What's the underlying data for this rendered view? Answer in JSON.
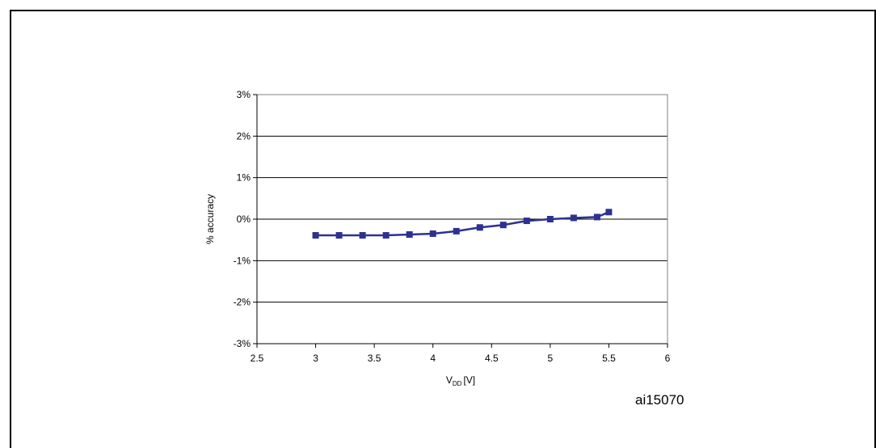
{
  "figure_id": "ai15070",
  "chart_data": {
    "type": "line",
    "title": "",
    "xlabel": {
      "main": "V",
      "sub": "DD",
      "unit": "[V]"
    },
    "ylabel": "% accuracy",
    "xlim": [
      2.5,
      6
    ],
    "ylim": [
      -3,
      3
    ],
    "x_ticks": [
      "2.5",
      "3",
      "3.5",
      "4",
      "4.5",
      "5",
      "5.5",
      "6"
    ],
    "y_ticks": [
      "3%",
      "2%",
      "1%",
      "0%",
      "-1%",
      "-2%",
      "-3%"
    ],
    "grid": "horizontal",
    "legend": "none",
    "series": [
      {
        "color": "#2e3192",
        "marker": "square",
        "x": [
          3,
          3.2,
          3.4,
          3.6,
          3.8,
          4,
          4.2,
          4.4,
          4.6,
          4.8,
          5,
          5.2,
          5.4,
          5.5
        ],
        "y": [
          -0.39,
          -0.39,
          -0.39,
          -0.39,
          -0.37,
          -0.35,
          -0.29,
          -0.2,
          -0.14,
          -0.04,
          0.0,
          0.03,
          0.05,
          0.17
        ]
      }
    ]
  }
}
